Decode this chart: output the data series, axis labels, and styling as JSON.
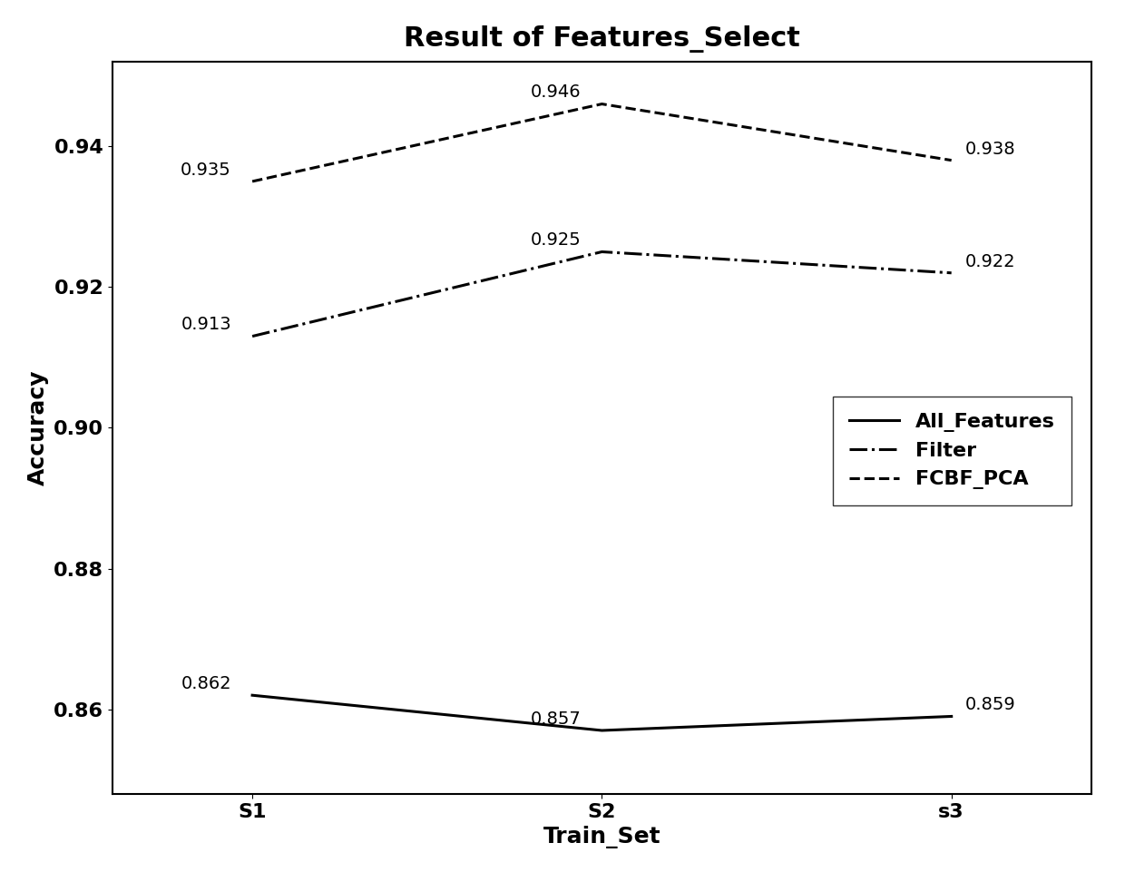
{
  "title": "Result of Features_Select",
  "xlabel": "Train_Set",
  "ylabel": "Accuracy",
  "x_labels": [
    "S1",
    "S2",
    "s3"
  ],
  "x_values": [
    0,
    1,
    2
  ],
  "series": [
    {
      "label": "All_Features",
      "values": [
        0.862,
        0.857,
        0.859
      ],
      "linestyle": "-",
      "linewidth": 2.2,
      "color": "#000000",
      "annotations": [
        "0.862",
        "0.857",
        "0.859"
      ]
    },
    {
      "label": "Filter",
      "values": [
        0.913,
        0.925,
        0.922
      ],
      "linestyle": "-.",
      "linewidth": 2.2,
      "color": "#000000",
      "annotations": [
        "0.913",
        "0.925",
        "0.922"
      ]
    },
    {
      "label": "FCBF_PCA",
      "values": [
        0.935,
        0.946,
        0.938
      ],
      "linestyle": "--",
      "linewidth": 2.2,
      "color": "#000000",
      "annotations": [
        "0.935",
        "0.946",
        "0.938"
      ]
    }
  ],
  "ylim": [
    0.848,
    0.952
  ],
  "yticks": [
    0.86,
    0.88,
    0.9,
    0.92,
    0.94
  ],
  "xlim": [
    -0.4,
    2.4
  ],
  "background_color": "#ffffff",
  "title_fontsize": 22,
  "label_fontsize": 18,
  "tick_fontsize": 16,
  "legend_fontsize": 16,
  "ann_fontsize": 14
}
